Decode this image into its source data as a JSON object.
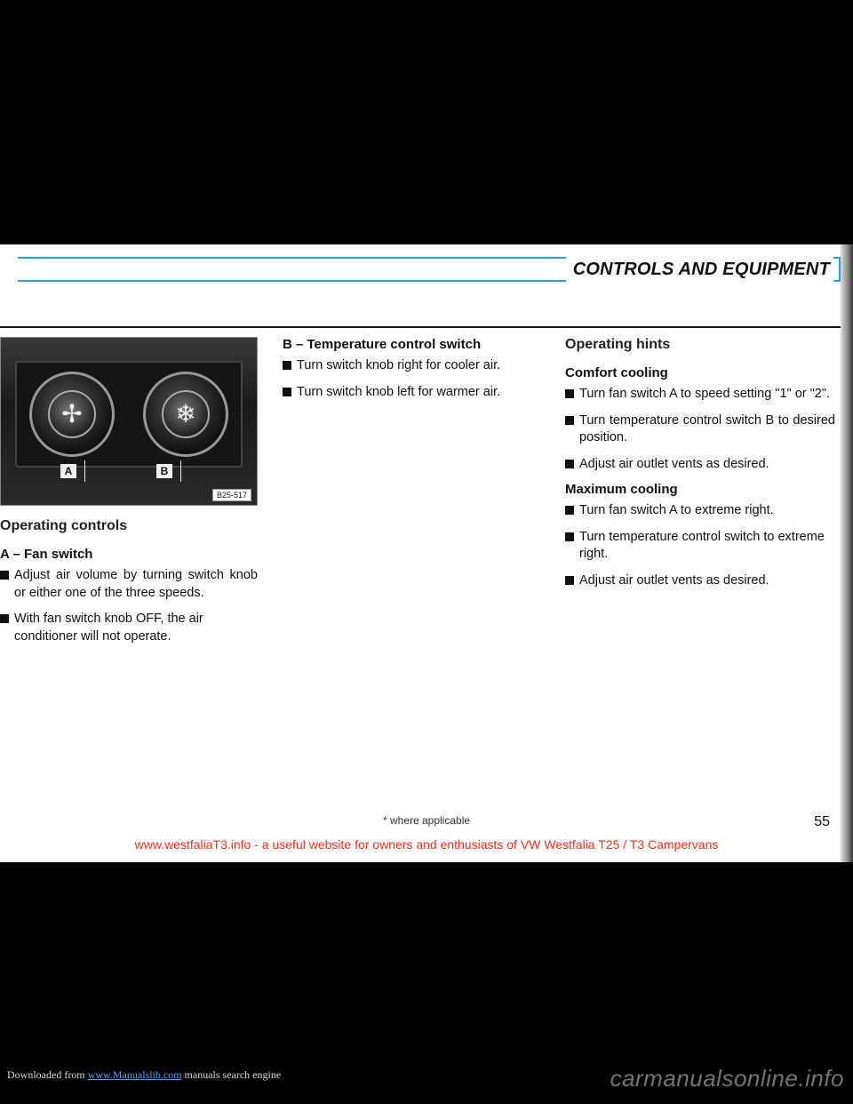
{
  "header": {
    "title": "CONTROLS AND EQUIPMENT"
  },
  "figure": {
    "label_a": "A",
    "label_b": "B",
    "ref": "B25-517"
  },
  "col1": {
    "h_controls": "Operating controls",
    "h_fan": "A – Fan switch",
    "b1": "Adjust air volume by turning switch knob or either one of the three speeds.",
    "b2": "With fan switch knob OFF, the air conditioner will not operate."
  },
  "col2": {
    "h_temp": "B – Temperature control switch",
    "b1": "Turn switch knob right for cooler air.",
    "b2": "Turn switch knob left for warmer air."
  },
  "col3": {
    "h_hints": "Operating hints",
    "h_comfort": "Comfort cooling",
    "c1": "Turn fan switch A to speed setting \"1\" or \"2\".",
    "c2": "Turn temperature control switch B to desired position.",
    "c3": "Adjust air outlet vents as desired.",
    "h_max": "Maximum cooling",
    "m1": "Turn fan switch A to extreme right.",
    "m2": "Turn temperature control switch to extreme right.",
    "m3": "Adjust air outlet vents as desired."
  },
  "footer": {
    "note": "* where applicable",
    "page": "55",
    "red": "www.westfaliaT3.info - a useful website for owners and enthusiasts of VW Westfalia T25 / T3 Campervans"
  },
  "download": {
    "prefix": "Downloaded from ",
    "link": "www.Manualslib.com",
    "suffix": " manuals search engine"
  },
  "watermark": "carmanualsonline.info"
}
